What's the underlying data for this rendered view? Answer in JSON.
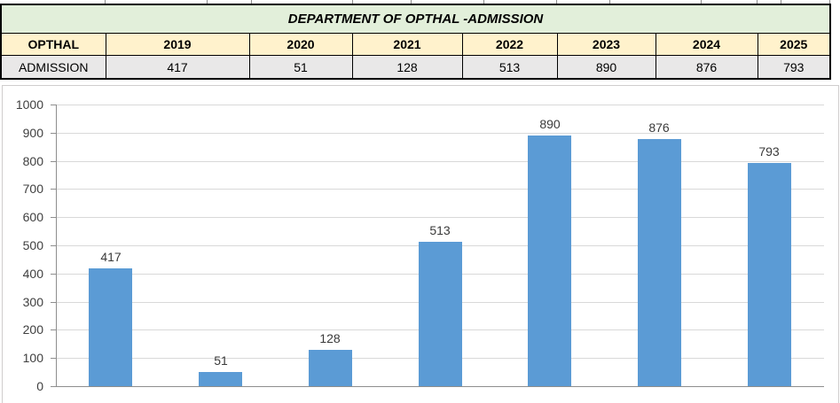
{
  "table": {
    "title": "DEPARTMENT OF OPTHAL -ADMISSION",
    "columns": [
      "OPTHAL",
      "2019",
      "2020",
      "2021",
      "2022",
      "2023",
      "2024",
      "2025"
    ],
    "rows": [
      {
        "label": "ADMISSION",
        "values": [
          "417",
          "51",
          "128",
          "513",
          "890",
          "876",
          "793"
        ]
      }
    ]
  },
  "chart_data": {
    "type": "bar",
    "categories": [
      "2019",
      "2020",
      "2021",
      "2022",
      "2023",
      "2024",
      "2025"
    ],
    "values": [
      417,
      51,
      128,
      513,
      890,
      876,
      793
    ],
    "title": "",
    "xlabel": "",
    "ylabel": "",
    "ylim": [
      0,
      1000
    ],
    "ytick_step": 100,
    "grid": true,
    "legend": "none",
    "data_labels": true,
    "x_axis_labels_visible": false
  },
  "colors": {
    "title_row_bg": "#E2EFDA",
    "year_row_bg": "#FFF2CC",
    "data_row_bg": "#E9E8E8",
    "bar": "#5B9BD5",
    "gridline": "#D9D9D9",
    "axis": "#8E8E8E",
    "label_text": "#3A3A3A",
    "chart_border": "#D0CECE"
  }
}
